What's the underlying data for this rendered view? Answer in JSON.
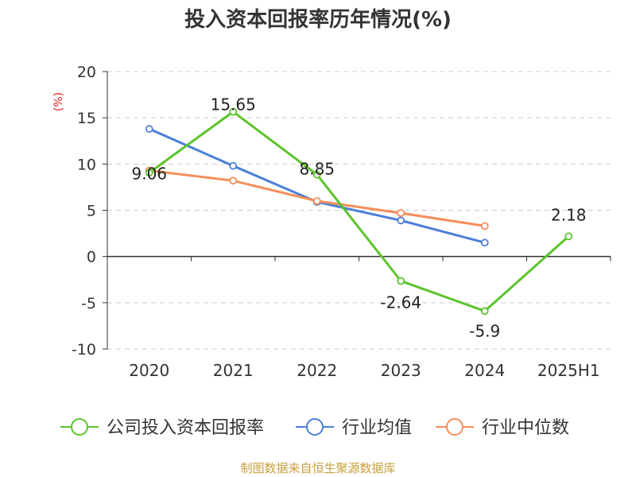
{
  "chart_data": {
    "type": "line",
    "title": "投入资本回报率历年情况(%)",
    "ylabel": "(%)",
    "xlabel": "",
    "categories": [
      "2020",
      "2021",
      "2022",
      "2023",
      "2024",
      "2025H1"
    ],
    "ylim": [
      -10,
      20
    ],
    "yticks": [
      20,
      15,
      10,
      5,
      0,
      -5,
      -10
    ],
    "grid": true,
    "legend_position": "bottom",
    "series": [
      {
        "name": "公司投入资本回报率",
        "color": "#5cc42c",
        "values": [
          9.06,
          15.65,
          8.85,
          -2.64,
          -5.9,
          2.18
        ],
        "labels": [
          "9.06",
          "15.65",
          "8.85",
          "-2.64",
          "-5.9",
          "2.18"
        ]
      },
      {
        "name": "行业均值",
        "color": "#4a7fd8",
        "values": [
          13.8,
          9.8,
          5.9,
          3.9,
          1.5,
          null
        ]
      },
      {
        "name": "行业中位数",
        "color": "#f58e5a",
        "values": [
          9.3,
          8.2,
          6.0,
          4.7,
          3.3,
          null
        ]
      }
    ]
  },
  "source": "制图数据来自恒生聚源数据库"
}
